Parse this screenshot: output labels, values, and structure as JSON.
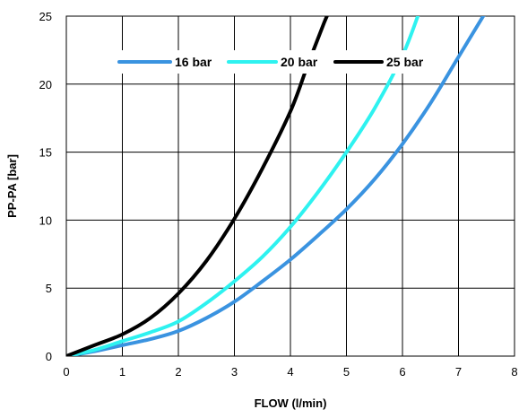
{
  "chart_data": {
    "type": "line",
    "title": "",
    "xlabel": "FLOW (l/min)",
    "ylabel": "PP-PA [bar]",
    "xlim": [
      0,
      8
    ],
    "ylim": [
      0,
      25
    ],
    "xticks": [
      "0",
      "1",
      "2",
      "3",
      "4",
      "5",
      "6",
      "7",
      "8"
    ],
    "yticks": [
      "0",
      "5",
      "10",
      "15",
      "20",
      "25"
    ],
    "grid": true,
    "legend_position": "top-inside",
    "series": [
      {
        "name": "16 bar",
        "color": "#3a93e0",
        "points": [
          [
            0,
            0
          ],
          [
            0.5,
            0.35
          ],
          [
            1,
            0.8
          ],
          [
            1.5,
            1.25
          ],
          [
            2,
            1.85
          ],
          [
            2.5,
            2.8
          ],
          [
            3,
            4.0
          ],
          [
            3.5,
            5.5
          ],
          [
            4,
            7.1
          ],
          [
            4.5,
            8.9
          ],
          [
            5,
            10.8
          ],
          [
            5.5,
            13.0
          ],
          [
            6,
            15.6
          ],
          [
            6.5,
            18.6
          ],
          [
            7,
            22.0
          ],
          [
            7.5,
            25.4
          ]
        ]
      },
      {
        "name": "20 bar",
        "color": "#2ef2f0",
        "points": [
          [
            0,
            0
          ],
          [
            0.5,
            0.45
          ],
          [
            1,
            1.1
          ],
          [
            1.5,
            1.75
          ],
          [
            2,
            2.55
          ],
          [
            2.5,
            3.9
          ],
          [
            3,
            5.5
          ],
          [
            3.5,
            7.3
          ],
          [
            4,
            9.5
          ],
          [
            4.5,
            12.1
          ],
          [
            5,
            15.0
          ],
          [
            5.5,
            18.2
          ],
          [
            6,
            22.1
          ],
          [
            6.3,
            25.3
          ]
        ]
      },
      {
        "name": "25 bar",
        "color": "#000000",
        "points": [
          [
            0,
            0
          ],
          [
            0.5,
            0.8
          ],
          [
            1,
            1.6
          ],
          [
            1.5,
            2.8
          ],
          [
            2,
            4.6
          ],
          [
            2.5,
            7.0
          ],
          [
            3,
            10.1
          ],
          [
            3.5,
            13.8
          ],
          [
            4,
            18.0
          ],
          [
            4.3,
            21.3
          ],
          [
            4.6,
            24.5
          ],
          [
            4.7,
            25.4
          ]
        ]
      }
    ]
  }
}
